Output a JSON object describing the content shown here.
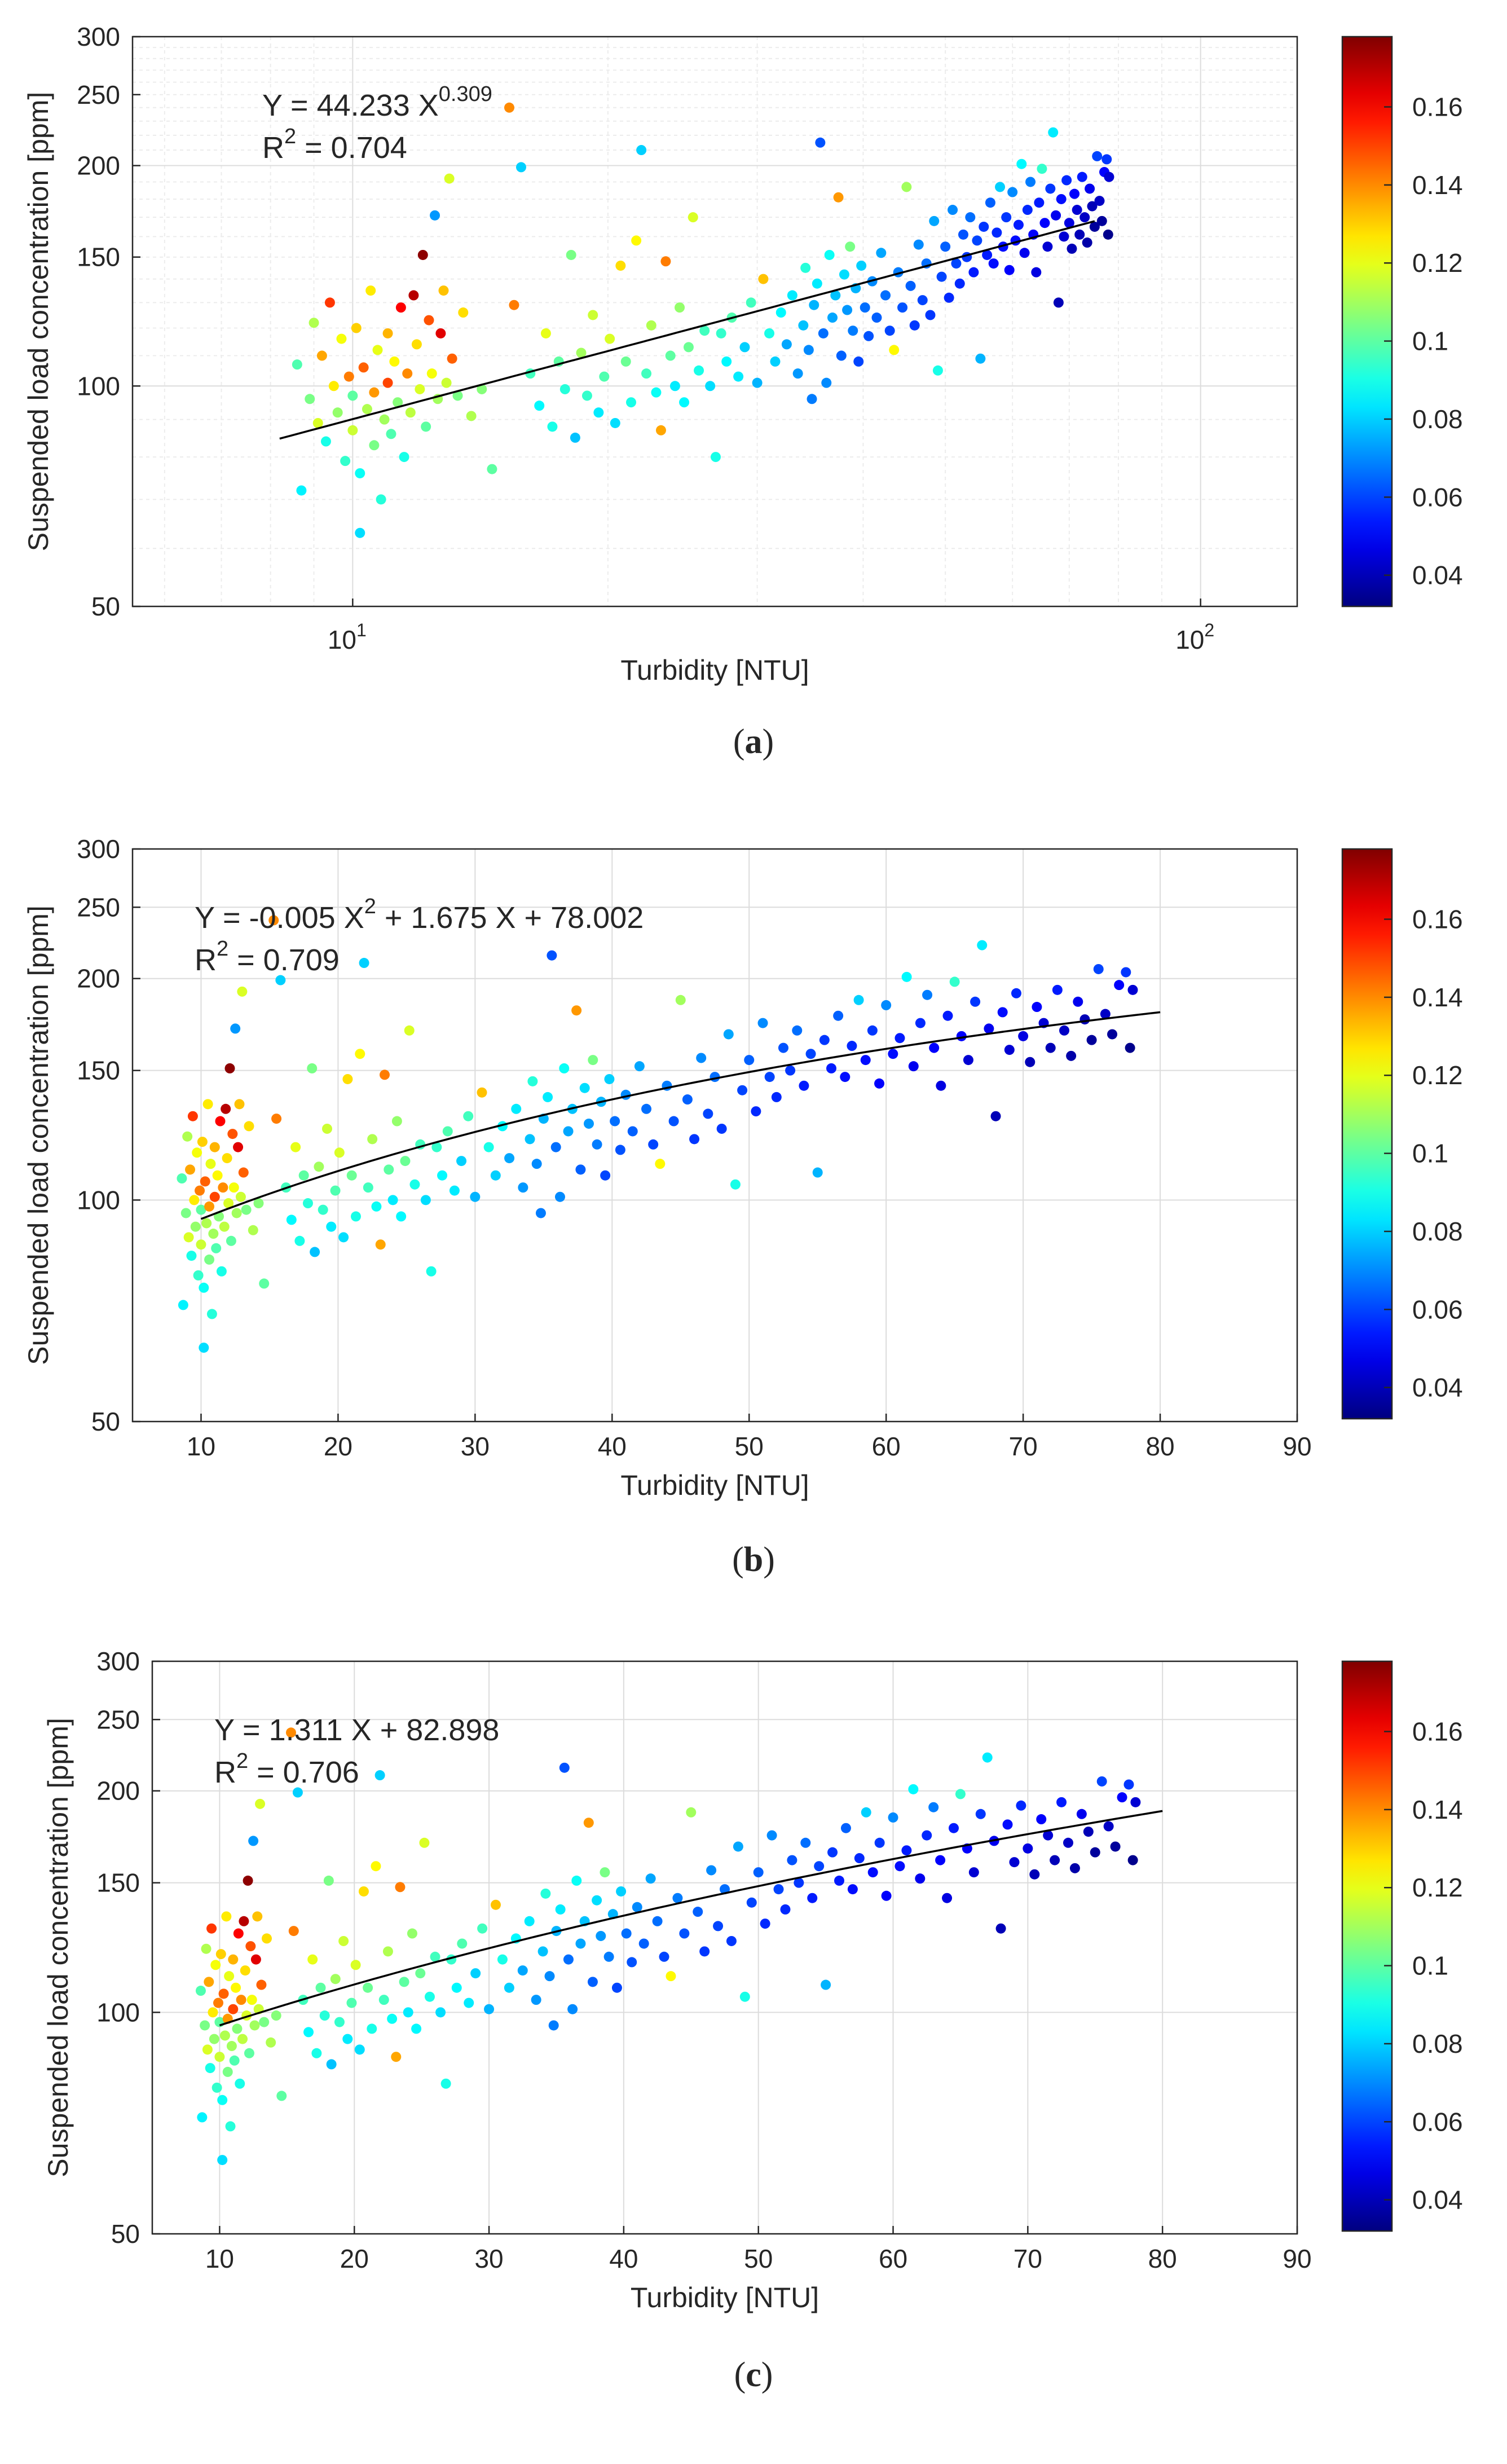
{
  "colors": {
    "fit_line": "#000000",
    "grid_major": "#dcdcdc",
    "grid_minor": "#ececec",
    "axis": "#262626",
    "colormap": "jet"
  },
  "colorbar": {
    "range": [
      0.032,
      0.178
    ],
    "ticks": [
      {
        "value": 0.04,
        "label": "0.04"
      },
      {
        "value": 0.06,
        "label": "0.06"
      },
      {
        "value": 0.08,
        "label": "0.08"
      },
      {
        "value": 0.1,
        "label": "0.1"
      },
      {
        "value": 0.12,
        "label": "0.12"
      },
      {
        "value": 0.14,
        "label": "0.14"
      },
      {
        "value": 0.16,
        "label": "0.16"
      }
    ]
  },
  "chart_data": [
    {
      "id": "a",
      "type": "scatter",
      "caption": "a",
      "xscale": "log",
      "yscale": "log",
      "xlim": [
        5.5,
        130
      ],
      "ylim": [
        50,
        300
      ],
      "xticks": [
        {
          "value": 10,
          "base": "10",
          "exp": "1"
        },
        {
          "value": 100,
          "base": "10",
          "exp": "2"
        }
      ],
      "yticks": [
        {
          "value": 50,
          "label": "50"
        },
        {
          "value": 100,
          "label": "100"
        },
        {
          "value": 150,
          "label": "150"
        },
        {
          "value": 200,
          "label": "200"
        },
        {
          "value": 250,
          "label": "250"
        },
        {
          "value": 300,
          "label": "300"
        }
      ],
      "xlabel": "Turbidity [NTU]",
      "ylabel": "Suspended load concentration [ppm]",
      "fit": {
        "form": "power",
        "a": 44.233,
        "b": 0.309,
        "x_range": [
          8.2,
          75
        ]
      },
      "equation": {
        "prefix": "Y = 44.233 X",
        "sup": "0.309",
        "suffix": ""
      },
      "r2": {
        "base": "R",
        "sup": "2",
        "value": " = 0.704"
      },
      "points_source": "shared_observations"
    },
    {
      "id": "b",
      "type": "scatter",
      "caption": "b",
      "xscale": "linear",
      "yscale": "log",
      "xlim": [
        5,
        90
      ],
      "ylim": [
        50,
        300
      ],
      "xticks": [
        {
          "value": 10,
          "label": "10"
        },
        {
          "value": 20,
          "label": "20"
        },
        {
          "value": 30,
          "label": "30"
        },
        {
          "value": 40,
          "label": "40"
        },
        {
          "value": 50,
          "label": "50"
        },
        {
          "value": 60,
          "label": "60"
        },
        {
          "value": 70,
          "label": "70"
        },
        {
          "value": 80,
          "label": "80"
        },
        {
          "value": 90,
          "label": "90"
        }
      ],
      "yticks": [
        {
          "value": 50,
          "label": "50"
        },
        {
          "value": 100,
          "label": "100"
        },
        {
          "value": 150,
          "label": "150"
        },
        {
          "value": 200,
          "label": "200"
        },
        {
          "value": 250,
          "label": "250"
        },
        {
          "value": 300,
          "label": "300"
        }
      ],
      "xlabel": "Turbidity [NTU]",
      "ylabel": "Suspended load concentration [ppm]",
      "fit": {
        "form": "poly2",
        "a": -0.005,
        "b": 1.675,
        "c": 78.002,
        "x_range": [
          10,
          80
        ]
      },
      "equation": {
        "prefix": "Y = -0.005 X",
        "sup": "2",
        "suffix": " + 1.675 X + 78.002"
      },
      "r2": {
        "base": "R",
        "sup": "2",
        "value": " = 0.709"
      },
      "points_source": "shared_observations"
    },
    {
      "id": "c",
      "type": "scatter",
      "caption": "c",
      "xscale": "linear",
      "yscale": "log",
      "xlim": [
        5,
        90
      ],
      "ylim": [
        50,
        300
      ],
      "xticks": [
        {
          "value": 10,
          "label": "10"
        },
        {
          "value": 20,
          "label": "20"
        },
        {
          "value": 30,
          "label": "30"
        },
        {
          "value": 40,
          "label": "40"
        },
        {
          "value": 50,
          "label": "50"
        },
        {
          "value": 60,
          "label": "60"
        },
        {
          "value": 70,
          "label": "70"
        },
        {
          "value": 80,
          "label": "80"
        },
        {
          "value": 90,
          "label": "90"
        }
      ],
      "yticks": [
        {
          "value": 50,
          "label": "50"
        },
        {
          "value": 100,
          "label": "100"
        },
        {
          "value": 150,
          "label": "150"
        },
        {
          "value": 200,
          "label": "200"
        },
        {
          "value": 250,
          "label": "250"
        },
        {
          "value": 300,
          "label": "300"
        }
      ],
      "xlabel": "Turbidity [NTU]",
      "ylabel": "Suspended load concentration [ppm]",
      "fit": {
        "form": "linear",
        "a": 1.311,
        "b": 82.898,
        "x_range": [
          10,
          80
        ]
      },
      "equation": {
        "prefix": "Y = 1.311 X + 82.898",
        "sup": "",
        "suffix": ""
      },
      "r2": {
        "base": "R",
        "sup": "2",
        "value": " = 0.706"
      },
      "points_source": "shared_observations"
    }
  ],
  "shared_observations": {
    "note_fields": [
      "turbidity_NTU",
      "suspended_load_ppm",
      "color_value"
    ],
    "points": [
      [
        8.6,
        107,
        0.098
      ],
      [
        8.7,
        72,
        0.085
      ],
      [
        8.9,
        96,
        0.104
      ],
      [
        9.0,
        122,
        0.112
      ],
      [
        9.1,
        89,
        0.118
      ],
      [
        9.2,
        110,
        0.136
      ],
      [
        9.3,
        84,
        0.09
      ],
      [
        9.4,
        130,
        0.152
      ],
      [
        9.5,
        100,
        0.126
      ],
      [
        9.6,
        92,
        0.108
      ],
      [
        9.7,
        116,
        0.122
      ],
      [
        9.8,
        79,
        0.094
      ],
      [
        9.9,
        103,
        0.142
      ],
      [
        10.0,
        87,
        0.116
      ],
      [
        10.0,
        97,
        0.1
      ],
      [
        10.1,
        120,
        0.13
      ],
      [
        10.2,
        76,
        0.088
      ],
      [
        10.2,
        63,
        0.082
      ],
      [
        10.3,
        106,
        0.146
      ],
      [
        10.4,
        93,
        0.112
      ],
      [
        10.5,
        135,
        0.126
      ],
      [
        10.6,
        83,
        0.104
      ],
      [
        10.6,
        98,
        0.138
      ],
      [
        10.7,
        112,
        0.12
      ],
      [
        10.8,
        70,
        0.092
      ],
      [
        10.9,
        90,
        0.11
      ],
      [
        11.0,
        101,
        0.15
      ],
      [
        11.0,
        118,
        0.134
      ],
      [
        11.1,
        86,
        0.098
      ],
      [
        11.2,
        108,
        0.124
      ],
      [
        11.3,
        95,
        0.106
      ],
      [
        11.4,
        128,
        0.16
      ],
      [
        11.5,
        80,
        0.09
      ],
      [
        11.6,
        104,
        0.14
      ],
      [
        11.7,
        92,
        0.114
      ],
      [
        11.8,
        133,
        0.17
      ],
      [
        11.9,
        114,
        0.128
      ],
      [
        12.0,
        99,
        0.118
      ],
      [
        12.1,
        151,
        0.176
      ],
      [
        12.2,
        88,
        0.1
      ],
      [
        12.3,
        123,
        0.148
      ],
      [
        12.4,
        104,
        0.122
      ],
      [
        12.5,
        171,
        0.072
      ],
      [
        12.6,
        96,
        0.11
      ],
      [
        12.7,
        118,
        0.164
      ],
      [
        12.8,
        135,
        0.132
      ],
      [
        12.9,
        101,
        0.116
      ],
      [
        13.0,
        192,
        0.118
      ],
      [
        13.1,
        109,
        0.146
      ],
      [
        13.3,
        97,
        0.104
      ],
      [
        13.5,
        126,
        0.128
      ],
      [
        13.8,
        91,
        0.112
      ],
      [
        14.2,
        99,
        0.106
      ],
      [
        14.6,
        77,
        0.1
      ],
      [
        15.3,
        240,
        0.14
      ],
      [
        15.5,
        129,
        0.142
      ],
      [
        15.8,
        199,
        0.08
      ],
      [
        16.2,
        104,
        0.096
      ],
      [
        16.6,
        94,
        0.086
      ],
      [
        16.9,
        118,
        0.12
      ],
      [
        17.2,
        88,
        0.09
      ],
      [
        17.5,
        108,
        0.1
      ],
      [
        17.8,
        99,
        0.092
      ],
      [
        18.1,
        151,
        0.104
      ],
      [
        18.3,
        85,
        0.078
      ],
      [
        18.6,
        111,
        0.11
      ],
      [
        18.9,
        97,
        0.094
      ],
      [
        19.2,
        125,
        0.116
      ],
      [
        19.5,
        92,
        0.084
      ],
      [
        19.8,
        103,
        0.098
      ],
      [
        20.1,
        116,
        0.118
      ],
      [
        20.4,
        89,
        0.082
      ],
      [
        20.7,
        146,
        0.128
      ],
      [
        21.0,
        108,
        0.102
      ],
      [
        21.3,
        95,
        0.09
      ],
      [
        21.6,
        158,
        0.124
      ],
      [
        21.9,
        210,
        0.08
      ],
      [
        22.2,
        104,
        0.096
      ],
      [
        22.5,
        121,
        0.112
      ],
      [
        22.8,
        98,
        0.088
      ],
      [
        23.1,
        87,
        0.136
      ],
      [
        23.4,
        148,
        0.142
      ],
      [
        23.7,
        110,
        0.1
      ],
      [
        24.0,
        100,
        0.084
      ],
      [
        24.3,
        128,
        0.108
      ],
      [
        24.6,
        95,
        0.086
      ],
      [
        24.9,
        113,
        0.102
      ],
      [
        25.2,
        170,
        0.118
      ],
      [
        25.6,
        105,
        0.09
      ],
      [
        26.0,
        119,
        0.096
      ],
      [
        26.4,
        100,
        0.082
      ],
      [
        26.8,
        80,
        0.09
      ],
      [
        27.2,
        118,
        0.094
      ],
      [
        27.6,
        108,
        0.086
      ],
      [
        28.0,
        124,
        0.098
      ],
      [
        28.5,
        103,
        0.084
      ],
      [
        29.0,
        113,
        0.08
      ],
      [
        29.5,
        130,
        0.096
      ],
      [
        30.0,
        101,
        0.076
      ],
      [
        30.5,
        140,
        0.132
      ],
      [
        31.0,
        118,
        0.09
      ],
      [
        31.5,
        108,
        0.08
      ],
      [
        32.0,
        126,
        0.086
      ],
      [
        32.5,
        114,
        0.074
      ],
      [
        33.0,
        133,
        0.084
      ],
      [
        33.5,
        104,
        0.072
      ],
      [
        34.0,
        121,
        0.078
      ],
      [
        34.2,
        145,
        0.092
      ],
      [
        34.5,
        112,
        0.07
      ],
      [
        34.8,
        96,
        0.068
      ],
      [
        35.0,
        129,
        0.076
      ],
      [
        35.3,
        138,
        0.084
      ],
      [
        35.6,
        215,
        0.062
      ],
      [
        35.9,
        118,
        0.066
      ],
      [
        36.2,
        101,
        0.07
      ],
      [
        36.5,
        151,
        0.088
      ],
      [
        36.8,
        124,
        0.074
      ],
      [
        37.1,
        133,
        0.078
      ],
      [
        37.4,
        181,
        0.138
      ],
      [
        37.7,
        110,
        0.064
      ],
      [
        38.0,
        142,
        0.082
      ],
      [
        38.3,
        127,
        0.072
      ],
      [
        38.6,
        155,
        0.104
      ],
      [
        38.9,
        119,
        0.068
      ],
      [
        39.2,
        136,
        0.076
      ],
      [
        39.5,
        108,
        0.06
      ],
      [
        39.8,
        146,
        0.08
      ],
      [
        40.2,
        128,
        0.066
      ],
      [
        40.6,
        117,
        0.062
      ],
      [
        41.0,
        139,
        0.07
      ],
      [
        41.5,
        124,
        0.064
      ],
      [
        42.0,
        152,
        0.074
      ],
      [
        42.5,
        133,
        0.066
      ],
      [
        43.0,
        119,
        0.06
      ],
      [
        43.5,
        112,
        0.124
      ],
      [
        44.0,
        143,
        0.068
      ],
      [
        44.5,
        128,
        0.062
      ],
      [
        45.0,
        187,
        0.11
      ],
      [
        45.5,
        137,
        0.064
      ],
      [
        46.0,
        121,
        0.058
      ],
      [
        46.5,
        156,
        0.07
      ],
      [
        47.0,
        131,
        0.06
      ],
      [
        47.5,
        147,
        0.066
      ],
      [
        48.0,
        125,
        0.058
      ],
      [
        48.5,
        168,
        0.074
      ],
      [
        49.0,
        105,
        0.09
      ],
      [
        49.5,
        141,
        0.06
      ],
      [
        50.0,
        155,
        0.064
      ],
      [
        50.5,
        132,
        0.056
      ],
      [
        51.0,
        174,
        0.07
      ],
      [
        51.5,
        147,
        0.06
      ],
      [
        52.0,
        138,
        0.056
      ],
      [
        52.5,
        161,
        0.062
      ],
      [
        53.0,
        150,
        0.058
      ],
      [
        53.5,
        170,
        0.066
      ],
      [
        54.0,
        143,
        0.054
      ],
      [
        54.5,
        158,
        0.06
      ],
      [
        55.0,
        109,
        0.076
      ],
      [
        55.5,
        165,
        0.058
      ],
      [
        56.0,
        151,
        0.054
      ],
      [
        56.5,
        178,
        0.064
      ],
      [
        57.0,
        147,
        0.052
      ],
      [
        57.5,
        162,
        0.056
      ],
      [
        58.0,
        187,
        0.08
      ],
      [
        58.5,
        155,
        0.052
      ],
      [
        59.0,
        170,
        0.058
      ],
      [
        59.5,
        144,
        0.05
      ],
      [
        60.0,
        184,
        0.07
      ],
      [
        60.5,
        158,
        0.052
      ],
      [
        61.0,
        166,
        0.054
      ],
      [
        61.5,
        201,
        0.086
      ],
      [
        62.0,
        152,
        0.048
      ],
      [
        62.5,
        174,
        0.056
      ],
      [
        63.0,
        190,
        0.068
      ],
      [
        63.5,
        161,
        0.05
      ],
      [
        64.0,
        143,
        0.046
      ],
      [
        64.5,
        178,
        0.054
      ],
      [
        65.0,
        198,
        0.094
      ],
      [
        65.5,
        167,
        0.05
      ],
      [
        66.0,
        155,
        0.044
      ],
      [
        66.5,
        186,
        0.058
      ],
      [
        67.0,
        222,
        0.084
      ],
      [
        67.5,
        171,
        0.048
      ],
      [
        68.0,
        130,
        0.04
      ],
      [
        68.5,
        180,
        0.052
      ],
      [
        69.0,
        160,
        0.044
      ],
      [
        69.5,
        191,
        0.056
      ],
      [
        70.0,
        167,
        0.046
      ],
      [
        70.5,
        154,
        0.04
      ],
      [
        71.0,
        183,
        0.05
      ],
      [
        71.5,
        174,
        0.044
      ],
      [
        72.0,
        161,
        0.04
      ],
      [
        72.5,
        193,
        0.054
      ],
      [
        73.0,
        170,
        0.042
      ],
      [
        73.5,
        157,
        0.038
      ],
      [
        74.0,
        186,
        0.048
      ],
      [
        74.5,
        176,
        0.04
      ],
      [
        75.0,
        165,
        0.036
      ],
      [
        75.5,
        206,
        0.06
      ],
      [
        76.0,
        179,
        0.042
      ],
      [
        76.5,
        168,
        0.036
      ],
      [
        77.0,
        196,
        0.05
      ],
      [
        77.5,
        204,
        0.058
      ],
      [
        77.8,
        161,
        0.034
      ],
      [
        78.0,
        193,
        0.044
      ]
    ]
  }
}
